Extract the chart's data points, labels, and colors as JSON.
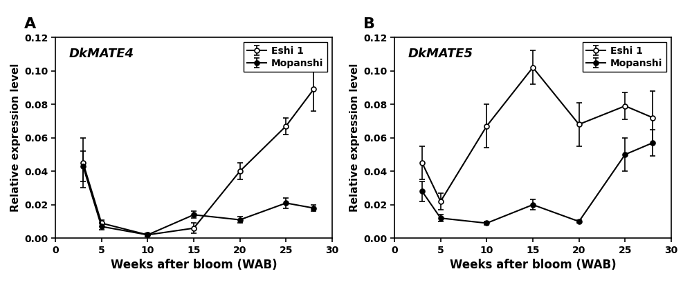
{
  "panel_A": {
    "title": "DkMATE4",
    "label": "A",
    "x": [
      3,
      5,
      10,
      15,
      20,
      25,
      28
    ],
    "eshi_y": [
      0.045,
      0.009,
      0.002,
      0.006,
      0.04,
      0.067,
      0.089
    ],
    "eshi_err": [
      0.015,
      0.002,
      0.001,
      0.003,
      0.005,
      0.005,
      0.013
    ],
    "mopanshi_y": [
      0.043,
      0.007,
      0.002,
      0.014,
      0.011,
      0.021,
      0.018
    ],
    "mopanshi_err": [
      0.009,
      0.002,
      0.001,
      0.002,
      0.002,
      0.003,
      0.002
    ]
  },
  "panel_B": {
    "title": "DkMATE5",
    "label": "B",
    "x": [
      3,
      5,
      10,
      15,
      20,
      25,
      28
    ],
    "eshi_y": [
      0.045,
      0.022,
      0.067,
      0.102,
      0.068,
      0.079,
      0.072
    ],
    "eshi_err": [
      0.01,
      0.005,
      0.013,
      0.01,
      0.013,
      0.008,
      0.016
    ],
    "mopanshi_y": [
      0.028,
      0.012,
      0.009,
      0.02,
      0.01,
      0.05,
      0.057
    ],
    "mopanshi_err": [
      0.006,
      0.002,
      0.001,
      0.003,
      0.001,
      0.01,
      0.008
    ]
  },
  "xlim": [
    0,
    30
  ],
  "ylim": [
    0,
    0.12
  ],
  "xticks": [
    0,
    5,
    10,
    15,
    20,
    25,
    30
  ],
  "yticks": [
    0.0,
    0.02,
    0.04,
    0.06,
    0.08,
    0.1,
    0.12
  ],
  "xlabel": "Weeks after bloom (WAB)",
  "ylabel": "Relative expression level",
  "eshi_label": "Eshi 1",
  "mopanshi_label": "Mopanshi",
  "linewidth": 1.5,
  "markersize": 5,
  "capsize": 3,
  "elinewidth": 1.2,
  "tick_fontsize": 10,
  "label_fontsize": 12,
  "panel_label_fontsize": 16,
  "title_fontsize": 13,
  "legend_fontsize": 10
}
